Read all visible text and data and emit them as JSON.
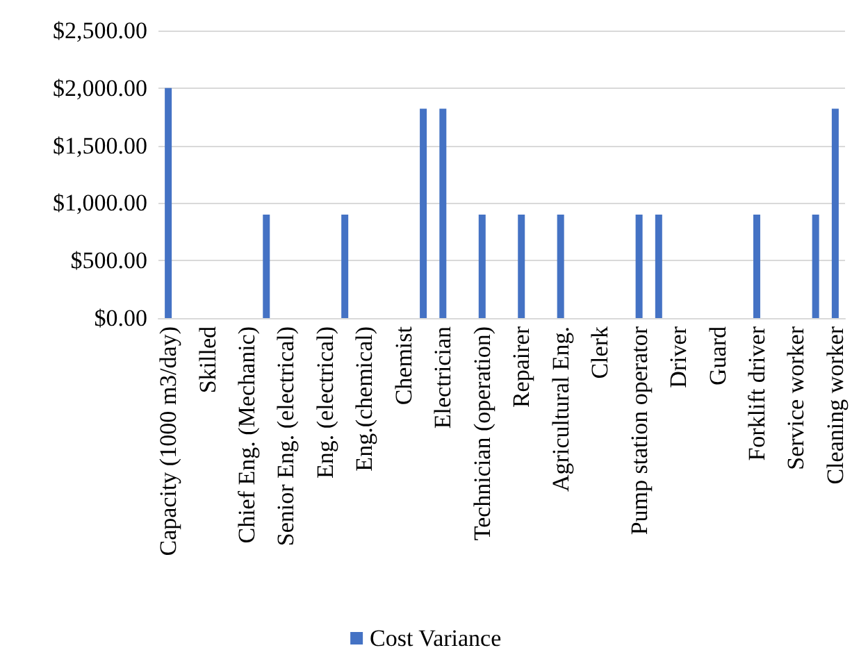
{
  "chart_data": {
    "type": "bar",
    "categories": [
      "Capacity (1000 m3/day)",
      null,
      "Skilled",
      null,
      "Chief Eng. (Mechanic)",
      null,
      "Senior Eng. (electrical)",
      null,
      "Eng. (electrical)",
      null,
      "Eng.(chemical)",
      null,
      "Chemist",
      null,
      "Electrician",
      null,
      "Technician (operation)",
      null,
      "Repairer",
      null,
      "Agricultural Eng.",
      null,
      "Clerk",
      null,
      "Pump station operator",
      null,
      "Driver",
      null,
      "Guard",
      null,
      "Forklift driver",
      null,
      "Service worker",
      null,
      "Cleaning worker"
    ],
    "series": [
      {
        "name": "Cost Variance",
        "color": "#4472c4",
        "values": [
          2000,
          0,
          0,
          0,
          0,
          900,
          0,
          0,
          0,
          900,
          0,
          0,
          0,
          1820,
          1820,
          0,
          900,
          0,
          900,
          0,
          900,
          0,
          0,
          0,
          900,
          900,
          0,
          0,
          0,
          0,
          900,
          0,
          0,
          900,
          1820
        ]
      }
    ],
    "ylim": [
      0,
      2500
    ],
    "yticks": [
      {
        "value": 0,
        "label": "$0.00"
      },
      {
        "value": 500,
        "label": "$500.00"
      },
      {
        "value": 1000,
        "label": "$1,000.00"
      },
      {
        "value": 1500,
        "label": "$1,500.00"
      },
      {
        "value": 2000,
        "label": "$2,000.00"
      },
      {
        "value": 2500,
        "label": "$2,500.00"
      }
    ],
    "grid": "y",
    "legend": "bottom"
  }
}
